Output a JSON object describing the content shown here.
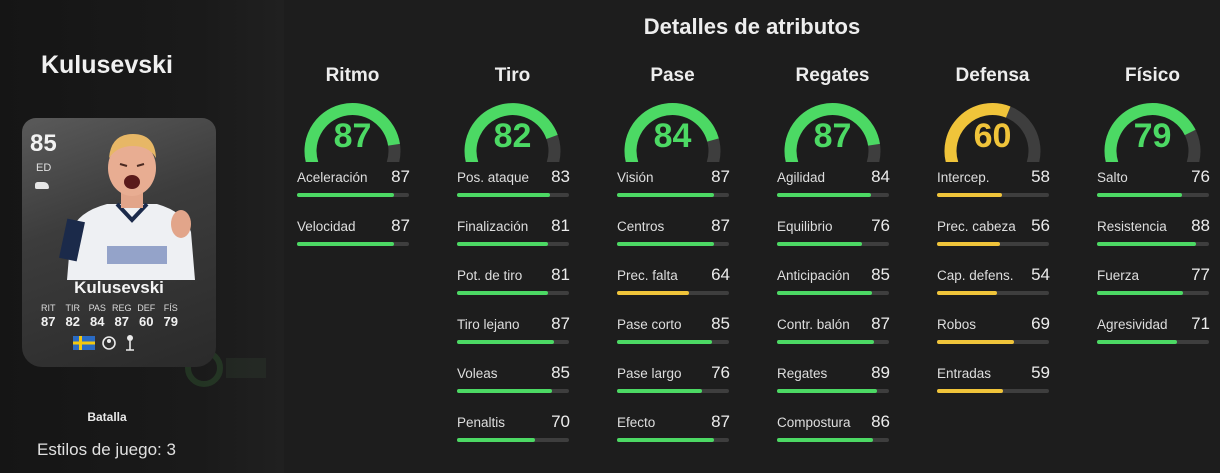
{
  "colors": {
    "green": "#4cd964",
    "yellow": "#f0c43a",
    "track": "#3e3e3e",
    "orange": "#f5c12d"
  },
  "player": {
    "name": "Kulusevski",
    "rating": "85",
    "position": "ED",
    "card_stats": [
      {
        "label": "RIT",
        "value": "87"
      },
      {
        "label": "TIR",
        "value": "82"
      },
      {
        "label": "PAS",
        "value": "84"
      },
      {
        "label": "REG",
        "value": "87"
      },
      {
        "label": "DEF",
        "value": "60"
      },
      {
        "label": "FÍS",
        "value": "79"
      }
    ],
    "play_style": "Batalla",
    "playstyles_count": "Estilos de juego: 3"
  },
  "details_title": "Detalles de atributos",
  "categories": [
    {
      "title": "Ritmo",
      "value": 87,
      "color": "green",
      "attributes": [
        {
          "label": "Aceleración",
          "value": 87
        },
        {
          "label": "Velocidad",
          "value": 87
        }
      ]
    },
    {
      "title": "Tiro",
      "value": 82,
      "color": "green",
      "attributes": [
        {
          "label": "Pos. ataque",
          "value": 83
        },
        {
          "label": "Finalización",
          "value": 81
        },
        {
          "label": "Pot. de tiro",
          "value": 81
        },
        {
          "label": "Tiro lejano",
          "value": 87
        },
        {
          "label": "Voleas",
          "value": 85
        },
        {
          "label": "Penaltis",
          "value": 70
        }
      ]
    },
    {
      "title": "Pase",
      "value": 84,
      "color": "green",
      "attributes": [
        {
          "label": "Visión",
          "value": 87
        },
        {
          "label": "Centros",
          "value": 87
        },
        {
          "label": "Prec. falta",
          "value": 64
        },
        {
          "label": "Pase corto",
          "value": 85
        },
        {
          "label": "Pase largo",
          "value": 76
        },
        {
          "label": "Efecto",
          "value": 87
        }
      ]
    },
    {
      "title": "Regates",
      "value": 87,
      "color": "green",
      "attributes": [
        {
          "label": "Agilidad",
          "value": 84
        },
        {
          "label": "Equilibrio",
          "value": 76
        },
        {
          "label": "Anticipación",
          "value": 85
        },
        {
          "label": "Contr. balón",
          "value": 87
        },
        {
          "label": "Regates",
          "value": 89
        },
        {
          "label": "Compostura",
          "value": 86
        }
      ]
    },
    {
      "title": "Defensa",
      "value": 60,
      "color": "yellow",
      "attributes": [
        {
          "label": "Intercep.",
          "value": 58
        },
        {
          "label": "Prec. cabeza",
          "value": 56
        },
        {
          "label": "Cap. defens.",
          "value": 54
        },
        {
          "label": "Robos",
          "value": 69
        },
        {
          "label": "Entradas",
          "value": 59
        }
      ]
    },
    {
      "title": "Físico",
      "value": 79,
      "color": "green",
      "attributes": [
        {
          "label": "Salto",
          "value": 76
        },
        {
          "label": "Resistencia",
          "value": 88
        },
        {
          "label": "Fuerza",
          "value": 77
        },
        {
          "label": "Agresividad",
          "value": 71
        }
      ]
    }
  ]
}
